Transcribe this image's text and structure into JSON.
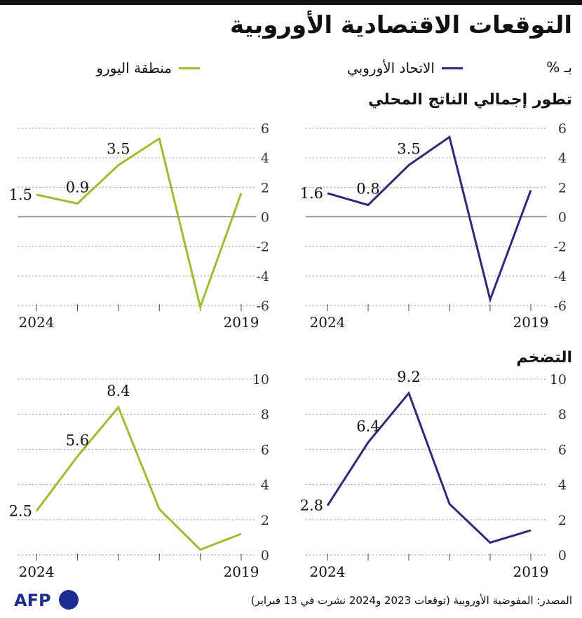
{
  "title": "التوقعات الاقتصادية الأوروبية",
  "unit_label": "بـ %",
  "legend": [
    {
      "label": "الاتحاد الأوروبي",
      "color": "#2e2a7a"
    },
    {
      "label": "منطقة اليورو",
      "color": "#9cbd2f"
    }
  ],
  "sections": {
    "gdp": "تطور إجمالي الناتج المحلي",
    "inflation": "التضخم"
  },
  "footer": {
    "source": "المصدر: المفوضية الأوروبية (توقعات 2023 و2024 نشرت في 13 فبراير)",
    "logo_text": "AFP"
  },
  "chart_data": [
    {
      "type": "line",
      "id": "gdp-eu",
      "title": "تطور إجمالي الناتج المحلي",
      "series": [
        {
          "name": "الاتحاد الأوروبي",
          "color": "#2e2a7a",
          "x": [
            2019,
            2020,
            2021,
            2022,
            2023,
            2024
          ],
          "values": [
            1.8,
            -5.6,
            5.4,
            3.5,
            0.8,
            1.6
          ]
        }
      ],
      "xlim": [
        2024,
        2019
      ],
      "ylim": [
        -6,
        6
      ],
      "yticks": [
        "6",
        "4",
        "2",
        "0",
        "-2",
        "-4",
        "-6"
      ],
      "xtick_labels": [
        {
          "x": 2024,
          "label": "2024"
        },
        {
          "x": 2019,
          "label": "2019"
        }
      ],
      "data_labels": [
        {
          "x": 2024,
          "y": 1.6,
          "label": "1.6"
        },
        {
          "x": 2023,
          "y": 0.8,
          "label": "0.8"
        },
        {
          "x": 2022,
          "y": 3.5,
          "label": "3.5"
        }
      ],
      "grid": true
    },
    {
      "type": "line",
      "id": "gdp-ez",
      "title": "تطور إجمالي الناتج المحلي",
      "series": [
        {
          "name": "منطقة اليورو",
          "color": "#9cbd2f",
          "x": [
            2019,
            2020,
            2021,
            2022,
            2023,
            2024
          ],
          "values": [
            1.6,
            -6.1,
            5.3,
            3.5,
            0.9,
            1.5
          ]
        }
      ],
      "xlim": [
        2024,
        2019
      ],
      "ylim": [
        -6,
        6
      ],
      "yticks": [
        "6",
        "4",
        "2",
        "0",
        "-2",
        "-4",
        "-6"
      ],
      "xtick_labels": [
        {
          "x": 2024,
          "label": "2024"
        },
        {
          "x": 2019,
          "label": "2019"
        }
      ],
      "data_labels": [
        {
          "x": 2024,
          "y": 1.5,
          "label": "1.5"
        },
        {
          "x": 2023,
          "y": 0.9,
          "label": "0.9"
        },
        {
          "x": 2022,
          "y": 3.5,
          "label": "3.5"
        }
      ],
      "grid": true
    },
    {
      "type": "line",
      "id": "infl-eu",
      "title": "التضخم",
      "series": [
        {
          "name": "الاتحاد الأوروبي",
          "color": "#2e2a7a",
          "x": [
            2019,
            2020,
            2021,
            2022,
            2023,
            2024
          ],
          "values": [
            1.4,
            0.7,
            2.9,
            9.2,
            6.4,
            2.8
          ]
        }
      ],
      "xlim": [
        2024,
        2019
      ],
      "ylim": [
        0,
        10
      ],
      "yticks": [
        "10",
        "8",
        "6",
        "4",
        "2",
        "0"
      ],
      "xtick_labels": [
        {
          "x": 2024,
          "label": "2024"
        },
        {
          "x": 2019,
          "label": "2019"
        }
      ],
      "data_labels": [
        {
          "x": 2024,
          "y": 2.8,
          "label": "2.8"
        },
        {
          "x": 2023,
          "y": 6.4,
          "label": "6.4"
        },
        {
          "x": 2022,
          "y": 9.2,
          "label": "9.2"
        }
      ],
      "grid": true
    },
    {
      "type": "line",
      "id": "infl-ez",
      "title": "التضخم",
      "series": [
        {
          "name": "منطقة اليورو",
          "color": "#9cbd2f",
          "x": [
            2019,
            2020,
            2021,
            2022,
            2023,
            2024
          ],
          "values": [
            1.2,
            0.3,
            2.6,
            8.4,
            5.6,
            2.5
          ]
        }
      ],
      "xlim": [
        2024,
        2019
      ],
      "ylim": [
        0,
        10
      ],
      "yticks": [
        "10",
        "8",
        "6",
        "4",
        "2",
        "0"
      ],
      "xtick_labels": [
        {
          "x": 2024,
          "label": "2024"
        },
        {
          "x": 2019,
          "label": "2019"
        }
      ],
      "data_labels": [
        {
          "x": 2024,
          "y": 2.5,
          "label": "2.5"
        },
        {
          "x": 2023,
          "y": 5.6,
          "label": "5.6"
        },
        {
          "x": 2022,
          "y": 8.4,
          "label": "8.4"
        }
      ],
      "grid": true
    }
  ]
}
